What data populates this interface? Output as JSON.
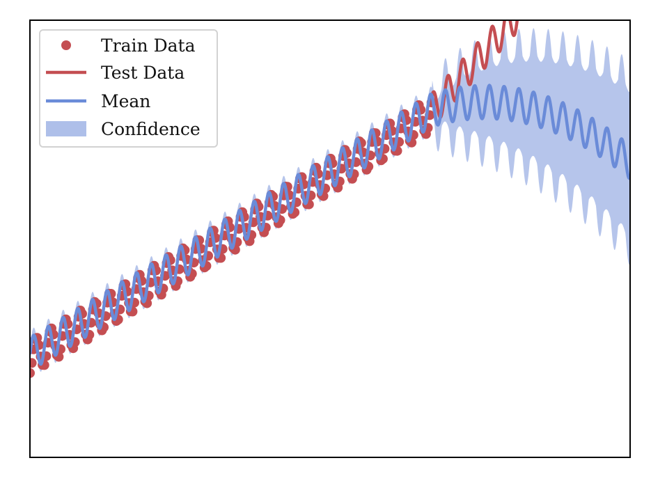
{
  "chart_data": {
    "type": "line",
    "title": "",
    "xlabel": "",
    "ylabel": "",
    "xlim": [
      0,
      100
    ],
    "ylim": [
      -3,
      11.4
    ],
    "grid": false,
    "legend_position": "top-left",
    "train_end_x": 67,
    "mean_end_x": 100,
    "test_end_x": 99,
    "model": {
      "train_trend": "0.4 + 0.12*x",
      "test_trend": "8.44 + 0.22*(x-67)",
      "mean_trend": "8.44 + 0.06*(x-67) - 0.0034*(x-67)^2 after training range",
      "seasonal_amplitude": 0.55,
      "seasonal_period_x": 2.45,
      "confidence_halfwidth": "0.25 in training range, growing to ~2.5 at x=100"
    },
    "series": [
      {
        "name": "Train Data",
        "kind": "scatter",
        "color": "#c44e52"
      },
      {
        "name": "Test Data",
        "kind": "line",
        "color": "#c44e52"
      },
      {
        "name": "Mean",
        "kind": "line",
        "color": "#6a8bd8"
      },
      {
        "name": "Confidence",
        "kind": "band",
        "color": "#aebfe9"
      }
    ]
  }
}
